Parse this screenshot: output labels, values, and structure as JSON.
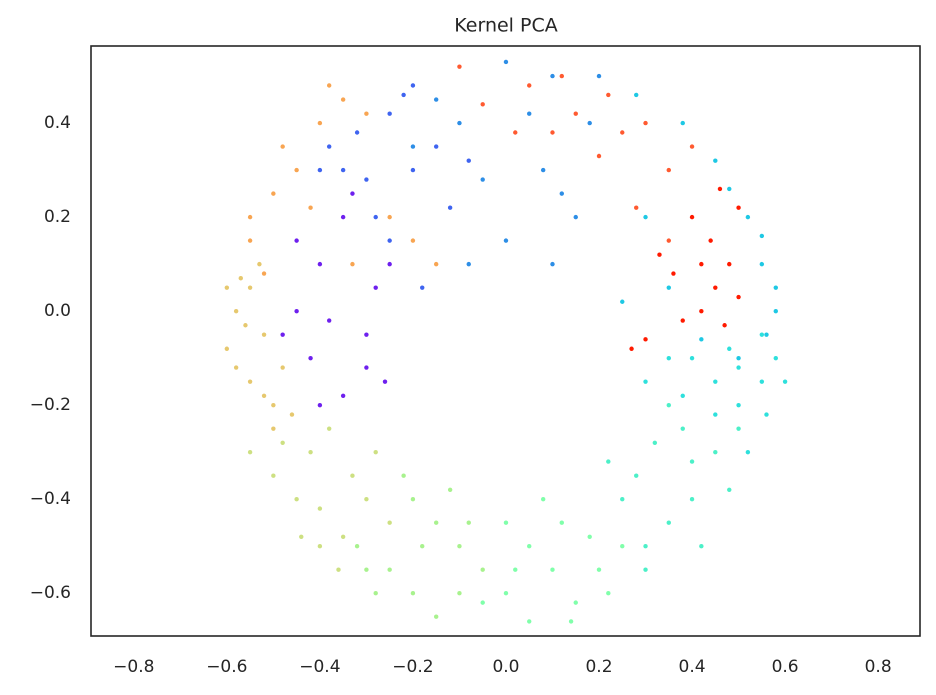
{
  "chart_data": {
    "type": "scatter",
    "title": "Kernel PCA",
    "xlim": [
      -0.892,
      0.89
    ],
    "ylim": [
      -0.691,
      0.564
    ],
    "xticks": [
      {
        "value": -0.8,
        "label": "−0.8"
      },
      {
        "value": -0.6,
        "label": "−0.6"
      },
      {
        "value": -0.4,
        "label": "−0.4"
      },
      {
        "value": -0.2,
        "label": "−0.2"
      },
      {
        "value": 0,
        "label": "0.0"
      },
      0.2,
      0.4,
      0.6,
      0.8
    ],
    "yticks": [
      {
        "value": -0.6,
        "label": "−0.6"
      },
      {
        "value": -0.4,
        "label": "−0.4"
      },
      {
        "value": -0.2,
        "label": "−0.2"
      },
      {
        "value": 0,
        "label": "0.0"
      },
      0.2,
      0.4
    ],
    "grid": false,
    "series": [
      {
        "color": "#ff1a00",
        "x": [
          0.45,
          0.42,
          0.48,
          0.38,
          0.5,
          0.44,
          0.36,
          0.47,
          0.4,
          0.3,
          0.5,
          0.33,
          0.46,
          0.27,
          0.42
        ],
        "y": [
          0.05,
          0.0,
          0.1,
          -0.02,
          0.03,
          0.15,
          0.08,
          -0.03,
          0.2,
          -0.06,
          0.22,
          0.12,
          0.26,
          -0.08,
          0.1
        ]
      },
      {
        "color": "#ff5a30",
        "x": [
          0.35,
          0.25,
          0.15,
          0.05,
          0.3,
          0.2,
          0.1,
          -0.05,
          0.4,
          0.28,
          0.12,
          0.02,
          -0.1,
          0.22,
          0.35
        ],
        "y": [
          0.3,
          0.38,
          0.42,
          0.48,
          0.4,
          0.33,
          0.38,
          0.44,
          0.35,
          0.22,
          0.5,
          0.38,
          0.52,
          0.46,
          0.15
        ]
      },
      {
        "color": "#1ec8e4",
        "x": [
          0.55,
          0.58,
          0.56,
          0.52,
          0.45,
          0.38,
          0.28,
          0.5,
          0.35,
          0.3,
          0.58,
          0.48,
          0.25,
          0.42,
          0.55
        ],
        "y": [
          0.1,
          0.0,
          -0.05,
          0.2,
          0.32,
          0.4,
          0.46,
          -0.1,
          0.05,
          0.2,
          0.05,
          0.26,
          0.02,
          -0.06,
          0.16
        ]
      },
      {
        "color": "#2d8ee6",
        "x": [
          0.0,
          0.1,
          -0.1,
          0.08,
          0.15,
          -0.05,
          0.2,
          0.0,
          -0.15,
          0.1,
          0.05,
          -0.08,
          0.18,
          -0.2,
          0.12
        ],
        "y": [
          0.53,
          0.5,
          0.4,
          0.3,
          0.2,
          0.28,
          0.5,
          0.15,
          0.45,
          0.1,
          0.42,
          0.1,
          0.4,
          0.35,
          0.25
        ]
      },
      {
        "color": "#3f64f0",
        "x": [
          -0.25,
          -0.32,
          -0.2,
          -0.3,
          -0.15,
          -0.38,
          -0.22,
          -0.12,
          -0.28,
          -0.18,
          -0.35,
          -0.08,
          -0.25,
          -0.2,
          -0.4
        ],
        "y": [
          0.42,
          0.38,
          0.3,
          0.28,
          0.35,
          0.35,
          0.46,
          0.22,
          0.2,
          0.05,
          0.3,
          0.32,
          0.15,
          0.48,
          0.3
        ]
      },
      {
        "color": "#6e20ee",
        "x": [
          -0.35,
          -0.4,
          -0.45,
          -0.3,
          -0.42,
          -0.35,
          -0.28,
          -0.45,
          -0.38,
          -0.3,
          -0.48,
          -0.25,
          -0.4,
          -0.33,
          -0.26
        ],
        "y": [
          0.2,
          0.1,
          0.0,
          -0.05,
          -0.1,
          -0.18,
          0.05,
          0.15,
          -0.02,
          -0.12,
          -0.05,
          0.1,
          -0.2,
          0.25,
          -0.15
        ]
      },
      {
        "color": "#f8a552",
        "x": [
          -0.45,
          -0.5,
          -0.4,
          -0.35,
          -0.55,
          -0.3,
          -0.48,
          -0.25,
          -0.2,
          -0.52,
          -0.42,
          -0.15,
          -0.33,
          -0.55,
          -0.38
        ],
        "y": [
          0.3,
          0.25,
          0.4,
          0.45,
          0.15,
          0.42,
          0.35,
          0.2,
          0.15,
          0.08,
          0.22,
          0.1,
          0.1,
          0.2,
          0.48
        ]
      },
      {
        "color": "#e6c86e",
        "x": [
          -0.58,
          -0.6,
          -0.55,
          -0.52,
          -0.57,
          -0.5,
          -0.55,
          -0.48,
          -0.58,
          -0.53,
          -0.5,
          -0.46,
          -0.56,
          -0.6,
          -0.52
        ],
        "y": [
          0.0,
          -0.08,
          -0.15,
          -0.05,
          0.07,
          -0.2,
          0.05,
          -0.12,
          -0.12,
          0.1,
          -0.25,
          -0.22,
          -0.03,
          0.05,
          -0.18
        ]
      },
      {
        "color": "#cde082",
        "x": [
          -0.5,
          -0.45,
          -0.4,
          -0.35,
          -0.42,
          -0.3,
          -0.38,
          -0.48,
          -0.33,
          -0.28,
          -0.44,
          -0.55,
          -0.36,
          -0.25,
          -0.4
        ],
        "y": [
          -0.35,
          -0.4,
          -0.42,
          -0.48,
          -0.3,
          -0.4,
          -0.25,
          -0.28,
          -0.35,
          -0.3,
          -0.48,
          -0.3,
          -0.55,
          -0.45,
          -0.5
        ]
      },
      {
        "color": "#a8f28e",
        "x": [
          -0.25,
          -0.2,
          -0.15,
          -0.1,
          -0.3,
          -0.18,
          -0.22,
          -0.12,
          -0.05,
          -0.28,
          -0.15,
          -0.08,
          -0.2,
          -0.32,
          -0.1
        ],
        "y": [
          -0.55,
          -0.6,
          -0.45,
          -0.6,
          -0.55,
          -0.5,
          -0.35,
          -0.38,
          -0.55,
          -0.6,
          -0.65,
          -0.45,
          -0.4,
          -0.5,
          -0.5
        ]
      },
      {
        "color": "#80ffaa",
        "x": [
          0.0,
          0.05,
          0.1,
          0.15,
          0.0,
          0.08,
          0.2,
          -0.05,
          0.12,
          0.22,
          0.05,
          0.18,
          0.02,
          0.25,
          0.14
        ],
        "y": [
          -0.6,
          -0.66,
          -0.55,
          -0.62,
          -0.45,
          -0.4,
          -0.55,
          -0.62,
          -0.45,
          -0.6,
          -0.5,
          -0.48,
          -0.55,
          -0.5,
          -0.66
        ]
      },
      {
        "color": "#4cf0c8",
        "x": [
          0.3,
          0.35,
          0.4,
          0.28,
          0.45,
          0.38,
          0.3,
          0.25,
          0.48,
          0.35,
          0.42,
          0.22,
          0.32,
          0.5,
          0.4
        ],
        "y": [
          -0.5,
          -0.45,
          -0.4,
          -0.35,
          -0.3,
          -0.25,
          -0.55,
          -0.4,
          -0.38,
          -0.2,
          -0.5,
          -0.32,
          -0.28,
          -0.25,
          -0.32
        ]
      },
      {
        "color": "#2ee0dc",
        "x": [
          0.55,
          0.5,
          0.45,
          0.58,
          0.4,
          0.52,
          0.35,
          0.56,
          0.48,
          0.3,
          0.55,
          0.45,
          0.6,
          0.38,
          0.5
        ],
        "y": [
          -0.15,
          -0.2,
          -0.15,
          -0.1,
          -0.1,
          -0.3,
          -0.1,
          -0.22,
          -0.08,
          -0.15,
          -0.05,
          -0.22,
          -0.15,
          -0.18,
          -0.12
        ]
      }
    ]
  }
}
